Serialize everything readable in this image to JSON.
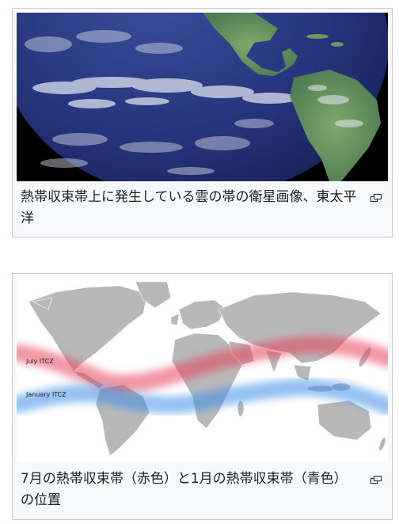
{
  "figures": [
    {
      "caption": "熱帯収束帯上に発生している雲の帯の衛星画像、東太平洋",
      "image": "satellite-image-eastern-pacific",
      "enlarge_icon": "magnify-clip-icon"
    },
    {
      "caption": "7月の熱帯収束帯（赤色）と1月の熱帯収束帯（青色）の位置",
      "image": "world-map-itcz",
      "enlarge_icon": "magnify-clip-icon",
      "map_labels": {
        "july": "July ITCZ",
        "january": "January ITCZ"
      },
      "band_colors": {
        "july": "#e8415a",
        "january": "#3d8fe8"
      }
    }
  ],
  "colors": {
    "border": "#c8ccd1",
    "figure_bg": "#f8f9fa",
    "text": "#202122"
  }
}
